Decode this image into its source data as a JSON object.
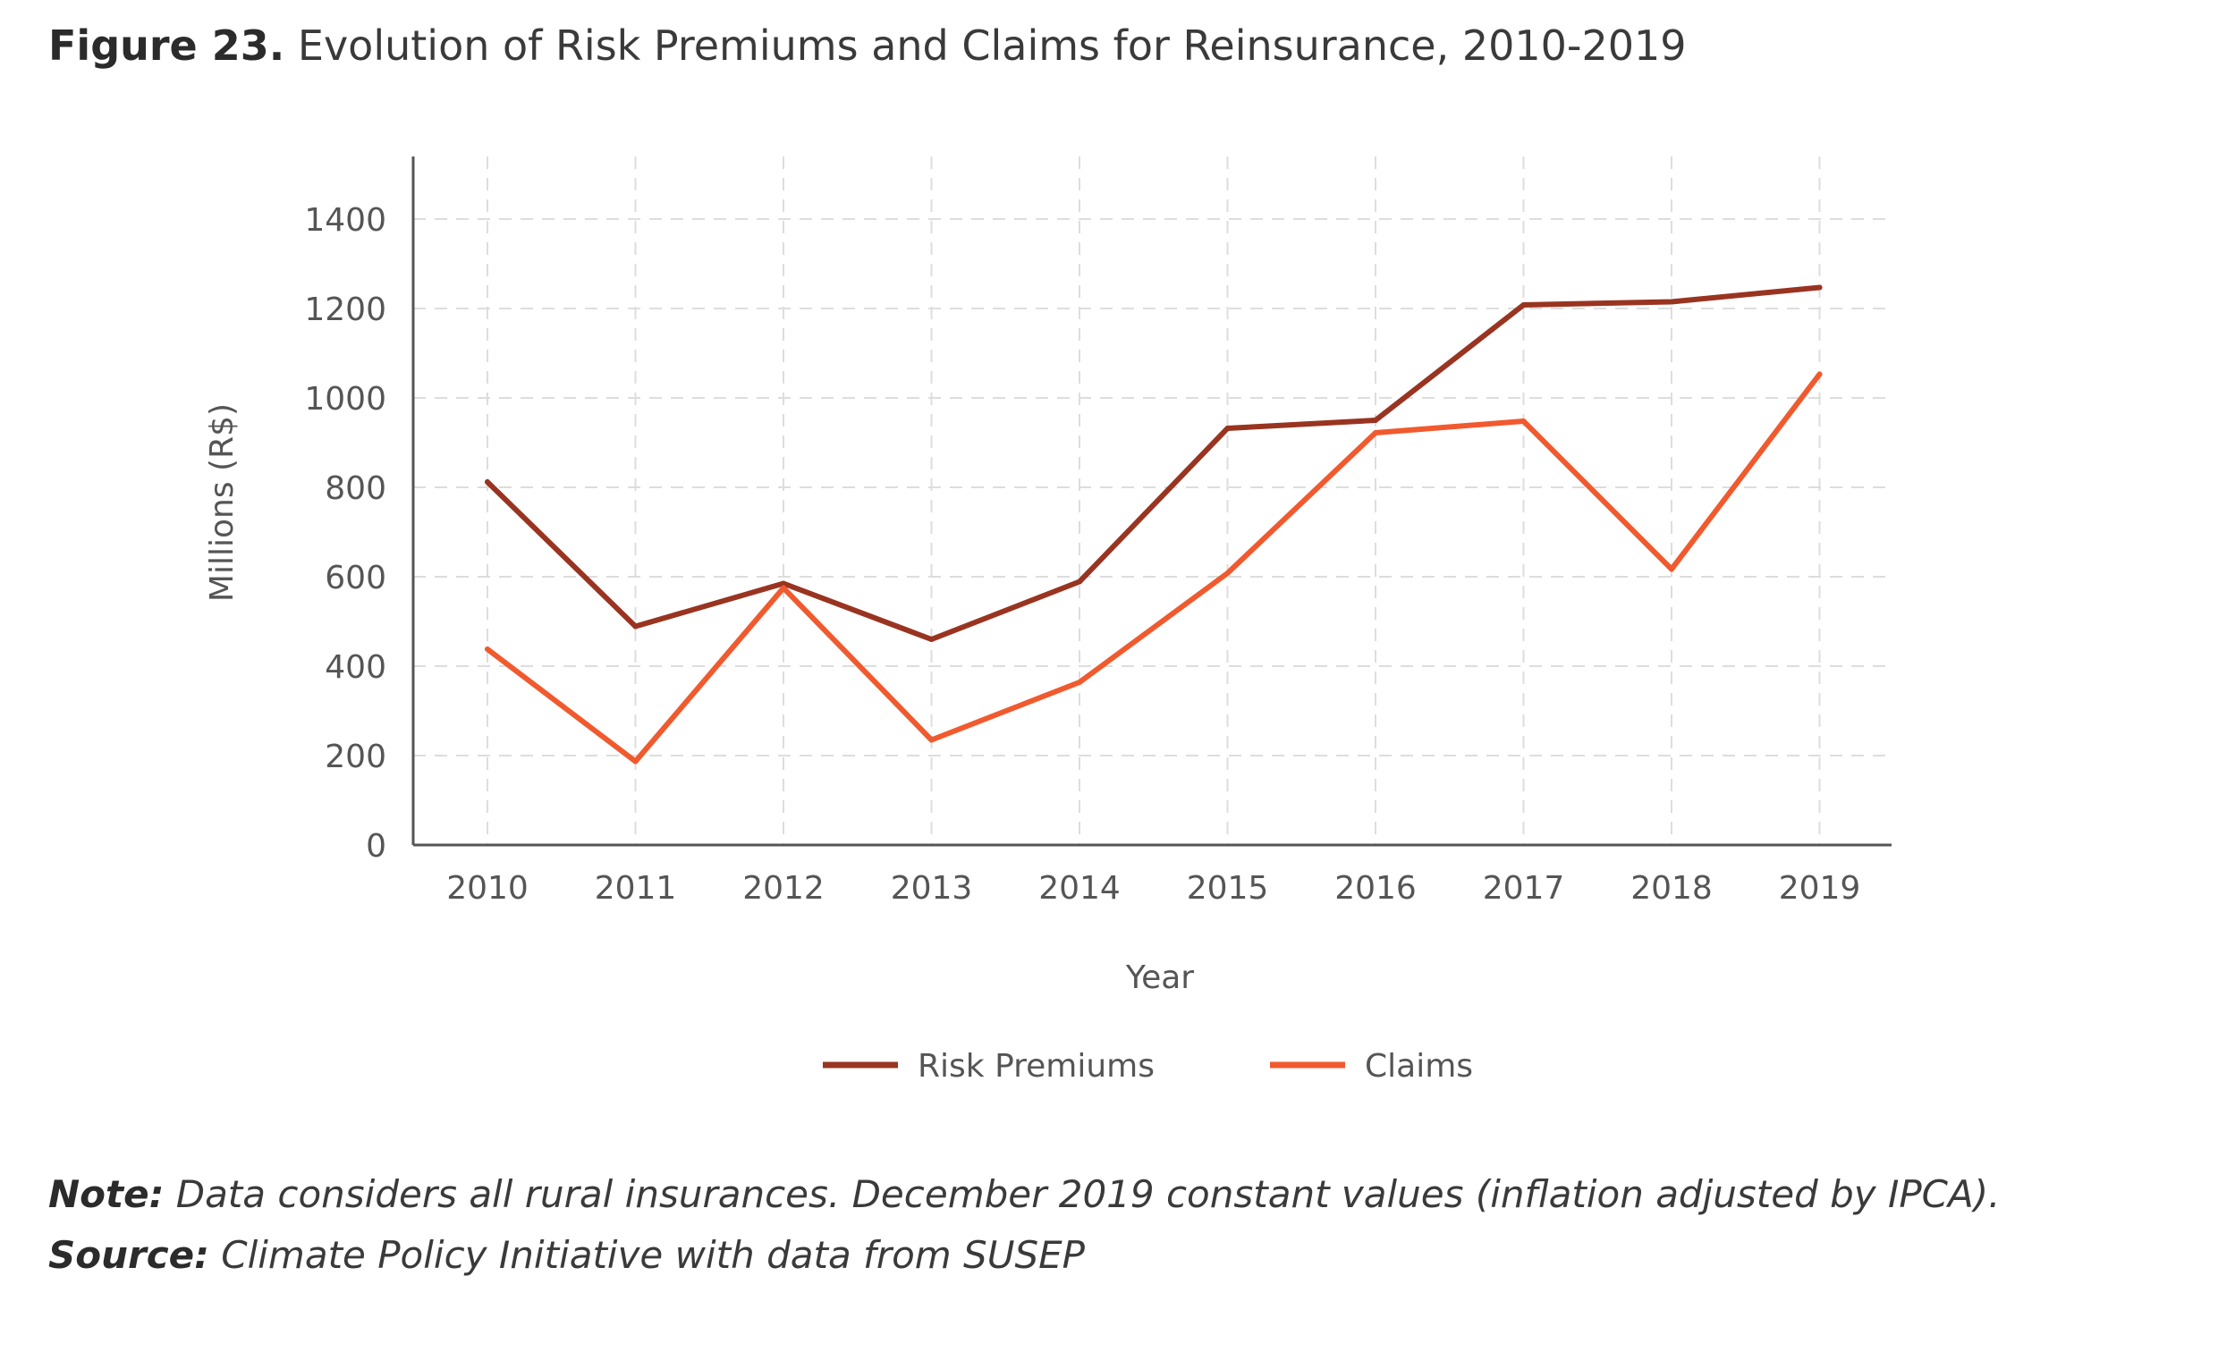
{
  "figure": {
    "title_lead": "Figure 23.",
    "title_text": "Evolution of Risk Premiums and Claims for Reinsurance, 2010-2019"
  },
  "chart_data": {
    "type": "line",
    "title": "Evolution of Risk Premiums and Claims for Reinsurance, 2010-2019",
    "xlabel": "Year",
    "ylabel": "Millions (R$)",
    "categories": [
      "2010",
      "2011",
      "2012",
      "2013",
      "2014",
      "2015",
      "2016",
      "2017",
      "2018",
      "2019"
    ],
    "y_ticks": [
      0,
      200,
      400,
      600,
      800,
      1000,
      1200,
      1400
    ],
    "ylim": [
      0,
      1540
    ],
    "grid": true,
    "legend_position": "bottom",
    "series": [
      {
        "name": "Risk Premiums",
        "color": "#993421",
        "values": [
          812,
          489,
          585,
          460,
          589,
          932,
          950,
          1208,
          1215,
          1247
        ]
      },
      {
        "name": "Claims",
        "color": "#F05A2E",
        "values": [
          438,
          187,
          575,
          235,
          364,
          608,
          922,
          948,
          617,
          1053
        ]
      }
    ]
  },
  "notes": {
    "note_lead": "Note:",
    "note_text": " Data considers all rural insurances. December 2019 constant values (inflation adjusted by IPCA).",
    "source_lead": "Source:",
    "source_text": " Climate Policy Initiative with data from SUSEP"
  }
}
